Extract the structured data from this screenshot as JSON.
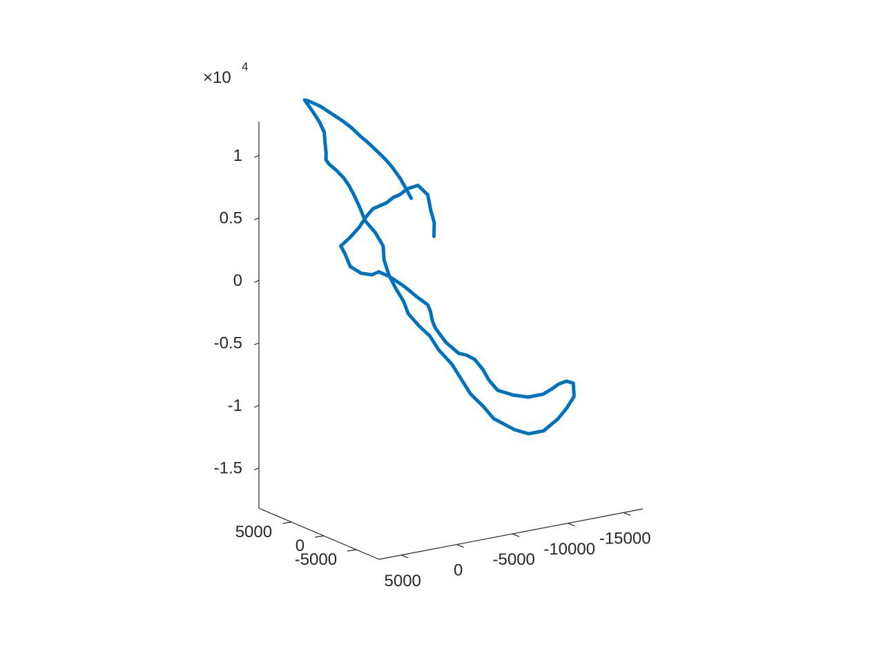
{
  "chart_data": {
    "type": "line",
    "title": "",
    "xlabel": "",
    "ylabel": "",
    "zlabel": "",
    "series_color": "#0072BD",
    "z_exponent_label": "×10",
    "z_exponent_power": "4",
    "axes": {
      "x": {
        "ticks": [
          {
            "value": 5000,
            "label": "5000"
          },
          {
            "value": 0,
            "label": "0"
          },
          {
            "value": -5000,
            "label": "-5000"
          },
          {
            "value": -10000,
            "label": "-10000"
          },
          {
            "value": -15000,
            "label": "-15000"
          }
        ],
        "range": [
          7000,
          -16500
        ]
      },
      "y": {
        "ticks": [
          {
            "value": 5000,
            "label": "5000"
          },
          {
            "value": 0,
            "label": "0"
          },
          {
            "value": -5000,
            "label": "-5000"
          }
        ],
        "range": [
          10000,
          -8500
        ]
      },
      "z": {
        "ticks": [
          {
            "value": 1,
            "label": "1"
          },
          {
            "value": 0.5,
            "label": "0.5"
          },
          {
            "value": 0,
            "label": "0"
          },
          {
            "value": -0.5,
            "label": "-0.5"
          },
          {
            "value": -1,
            "label": "-1"
          },
          {
            "value": -1.5,
            "label": "-1.5"
          }
        ],
        "range": [
          -1.9,
          1.25
        ]
      }
    },
    "series": [
      {
        "z": [
          -0.1,
          0.0,
          0.1,
          0.22,
          0.3,
          0.28,
          0.24,
          0.22,
          0.18,
          0.14,
          0.08,
          0.0,
          -0.08,
          -0.14,
          -0.2,
          -0.3,
          -0.36,
          -0.38,
          -0.36,
          -0.4,
          -0.44,
          -0.48,
          -0.53,
          -0.57,
          -0.62,
          -0.66,
          -0.72,
          -0.8,
          -0.86,
          -0.92,
          -0.98,
          -1.02,
          -1.06,
          -1.08,
          -1.1,
          -1.14,
          -1.22,
          -1.3,
          -1.38,
          -1.42,
          -1.44,
          -1.42,
          -1.38,
          -1.34,
          -1.32,
          -1.34,
          -1.46,
          -1.56,
          -1.65,
          -1.74,
          -1.76,
          -1.72,
          -1.62,
          -1.52,
          -1.42,
          -1.3,
          -1.18,
          -1.06,
          -0.94,
          -0.86,
          -0.76,
          -0.66,
          -0.56,
          -0.44,
          -0.32,
          -0.22,
          -0.12,
          -0.02,
          0.1,
          0.2,
          0.28,
          0.34,
          0.4,
          0.46,
          0.5,
          0.56,
          0.64,
          0.74,
          0.84,
          0.94,
          1.02,
          1.08,
          1.08,
          1.04,
          0.98,
          0.92,
          0.86,
          0.8,
          0.74,
          0.66,
          0.58,
          0.5,
          0.4,
          0.3,
          0.24
        ],
        "points": [
          [
            -4650,
            3000
          ],
          [
            -4850,
            3300
          ],
          [
            -4650,
            3500
          ],
          [
            -4500,
            3700
          ],
          [
            -3800,
            4000
          ],
          [
            -3000,
            4300
          ],
          [
            -2500,
            4500
          ],
          [
            -2000,
            4700
          ],
          [
            -1500,
            4900
          ],
          [
            -500,
            5300
          ],
          [
            0,
            5500
          ],
          [
            500,
            5700
          ],
          [
            1200,
            6000
          ],
          [
            1800,
            6300
          ],
          [
            1600,
            6000
          ],
          [
            1300,
            5700
          ],
          [
            500,
            5400
          ],
          [
            -300,
            5100
          ],
          [
            -800,
            4900
          ],
          [
            -1500,
            4500
          ],
          [
            -2000,
            4300
          ],
          [
            -2500,
            4100
          ],
          [
            -3000,
            3800
          ],
          [
            -3400,
            3700
          ],
          [
            -4000,
            3600
          ],
          [
            -4500,
            3700
          ],
          [
            -4800,
            3800
          ],
          [
            -5000,
            3850
          ],
          [
            -5200,
            3700
          ],
          [
            -5600,
            3600
          ],
          [
            -6000,
            3500
          ],
          [
            -6400,
            3400
          ],
          [
            -6800,
            3300
          ],
          [
            -7000,
            3200
          ],
          [
            -7600,
            3000
          ],
          [
            -8200,
            2800
          ],
          [
            -8700,
            2400
          ],
          [
            -9000,
            2000
          ],
          [
            -9500,
            1500
          ],
          [
            -10500,
            800
          ],
          [
            -11500,
            200
          ],
          [
            -12500,
            -400
          ],
          [
            -13000,
            -800
          ],
          [
            -13500,
            -1100
          ],
          [
            -14000,
            -1400
          ],
          [
            -14500,
            -1600
          ],
          [
            -14800,
            -1200
          ],
          [
            -14500,
            -600
          ],
          [
            -14000,
            -100
          ],
          [
            -13000,
            400
          ],
          [
            -12000,
            1000
          ],
          [
            -11000,
            1500
          ],
          [
            -9500,
            2100
          ],
          [
            -8800,
            2500
          ],
          [
            -8000,
            3100
          ],
          [
            -7400,
            3500
          ],
          [
            -6800,
            3900
          ],
          [
            -5900,
            4400
          ],
          [
            -5200,
            4600
          ],
          [
            -4500,
            5000
          ],
          [
            -3800,
            5500
          ],
          [
            -3500,
            5700
          ],
          [
            -3000,
            6000
          ],
          [
            -2500,
            6300
          ],
          [
            -2200,
            6500
          ],
          [
            -2300,
            6800
          ],
          [
            -1900,
            7300
          ],
          [
            -1200,
            7700
          ],
          [
            -700,
            7700
          ],
          [
            -300,
            7900
          ],
          [
            100,
            8000
          ],
          [
            400,
            8300
          ],
          [
            900,
            8500
          ],
          [
            1500,
            8700
          ],
          [
            1800,
            8600
          ],
          [
            1900,
            8400
          ],
          [
            2100,
            8200
          ],
          [
            2300,
            8000
          ],
          [
            2900,
            7700
          ],
          [
            3700,
            7300
          ],
          [
            4400,
            6900
          ],
          [
            5000,
            6400
          ],
          [
            4900,
            6000
          ],
          [
            4200,
            5400
          ],
          [
            3500,
            4800
          ],
          [
            2800,
            4200
          ],
          [
            2200,
            3800
          ],
          [
            1700,
            3500
          ],
          [
            1100,
            3300
          ],
          [
            300,
            3300
          ],
          [
            -500,
            3400
          ],
          [
            -1200,
            3500
          ],
          [
            -1900,
            3500
          ],
          [
            -2400,
            3300
          ],
          [
            -2600,
            3000
          ]
        ]
      }
    ]
  }
}
